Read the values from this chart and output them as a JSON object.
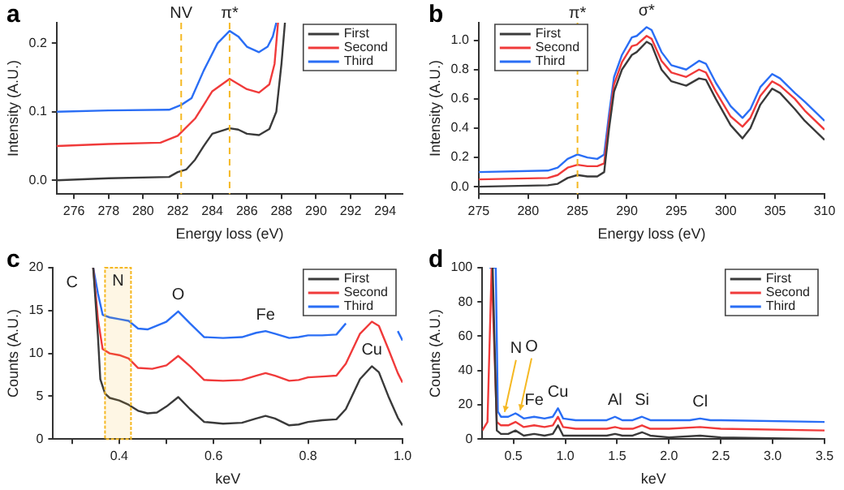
{
  "chart_data": [
    {
      "type": "line",
      "title": "a",
      "xlabel": "Energy loss (eV)",
      "ylabel": "Intensity (A.U.)",
      "xlim": [
        275,
        295
      ],
      "xticks": [
        276,
        278,
        280,
        282,
        284,
        286,
        288,
        290,
        292,
        294
      ],
      "ylim": [
        -0.02,
        0.23
      ],
      "yticks": [
        {
          "value": 0,
          "label": "0.0"
        },
        {
          "value": 0.1,
          "label": "0.1"
        },
        {
          "value": 0.2,
          "label": "0.2"
        }
      ],
      "legend": "top right",
      "ref_lines": [
        {
          "axis": "x",
          "value": 282.2,
          "label": "NV",
          "color": "#f5b822",
          "line_style": "dashed"
        },
        {
          "axis": "x",
          "value": 285,
          "label": "π*",
          "color": "#f5b822",
          "line_style": "dashed"
        }
      ],
      "series": [
        {
          "name": "First",
          "color": "#3a3a3a",
          "x": [
            275,
            278,
            281.5,
            282,
            282.5,
            283,
            283.5,
            284,
            285,
            285.5,
            286,
            286.7,
            287.3,
            287.7,
            288,
            288.2
          ],
          "values": [
            0,
            0.003,
            0.005,
            0.012,
            0.016,
            0.03,
            0.05,
            0.068,
            0.076,
            0.074,
            0.068,
            0.066,
            0.075,
            0.1,
            0.17,
            0.23
          ]
        },
        {
          "name": "Second",
          "color": "#f03a3a",
          "x": [
            275,
            278,
            281,
            282,
            283,
            284,
            285,
            286,
            286.7,
            287.3,
            287.6,
            287.8
          ],
          "values": [
            0.05,
            0.053,
            0.055,
            0.065,
            0.09,
            0.13,
            0.148,
            0.133,
            0.128,
            0.14,
            0.17,
            0.23
          ]
        },
        {
          "name": "Third",
          "color": "#2a6ef5",
          "x": [
            275,
            278,
            281.5,
            282.2,
            282.8,
            283.5,
            284.3,
            285,
            285.5,
            286,
            286.7,
            287.2,
            287.5,
            287.7
          ],
          "values": [
            0.1,
            0.102,
            0.103,
            0.11,
            0.12,
            0.16,
            0.2,
            0.218,
            0.21,
            0.195,
            0.187,
            0.195,
            0.21,
            0.23
          ]
        }
      ]
    },
    {
      "type": "line",
      "title": "b",
      "xlabel": "Energy loss (eV)",
      "ylabel": "Intensity (A.U.)",
      "xlim": [
        275,
        310
      ],
      "xticks": [
        275,
        280,
        285,
        290,
        295,
        300,
        305,
        310
      ],
      "ylim": [
        -0.05,
        1.12
      ],
      "yticks": [
        {
          "value": 0,
          "label": "0.0"
        },
        {
          "value": 0.2,
          "label": "0.2"
        },
        {
          "value": 0.4,
          "label": "0.4"
        },
        {
          "value": 0.6,
          "label": "0.6"
        },
        {
          "value": 0.8,
          "label": "0.8"
        },
        {
          "value": 1,
          "label": "1.0"
        }
      ],
      "legend": "top left",
      "ref_lines": [
        {
          "axis": "x",
          "value": 285,
          "label": "π*",
          "color": "#f5b822",
          "line_style": "dashed"
        }
      ],
      "annotations": [
        {
          "text": "σ*",
          "x": 292,
          "y": 1.09
        }
      ],
      "series": [
        {
          "name": "First",
          "color": "#3a3a3a",
          "x": [
            275,
            282,
            283,
            284,
            285,
            286,
            287,
            287.7,
            288.2,
            288.7,
            289.5,
            290.5,
            291,
            292,
            292.5,
            293.5,
            294.5,
            296,
            297.3,
            298,
            299,
            300.5,
            301.7,
            302.5,
            303.5,
            304.7,
            305.5,
            307,
            308,
            310
          ],
          "values": [
            0,
            0.01,
            0.02,
            0.06,
            0.08,
            0.07,
            0.07,
            0.1,
            0.4,
            0.65,
            0.8,
            0.9,
            0.92,
            0.99,
            0.97,
            0.8,
            0.72,
            0.69,
            0.74,
            0.73,
            0.6,
            0.42,
            0.33,
            0.4,
            0.56,
            0.67,
            0.64,
            0.53,
            0.45,
            0.32
          ]
        },
        {
          "name": "Second",
          "color": "#f03a3a",
          "x": [
            275,
            282,
            283,
            284,
            285,
            286,
            287,
            287.7,
            288.2,
            288.7,
            289.5,
            290.5,
            291,
            292,
            292.5,
            293.5,
            294.5,
            296,
            297.3,
            298,
            299,
            300.5,
            301.7,
            302.5,
            303.5,
            304.7,
            305.5,
            307,
            308,
            310
          ],
          "values": [
            0.05,
            0.06,
            0.08,
            0.13,
            0.15,
            0.14,
            0.14,
            0.16,
            0.45,
            0.7,
            0.85,
            0.96,
            0.97,
            1.03,
            1.01,
            0.86,
            0.78,
            0.75,
            0.8,
            0.78,
            0.65,
            0.48,
            0.41,
            0.47,
            0.62,
            0.72,
            0.69,
            0.6,
            0.52,
            0.39
          ]
        },
        {
          "name": "Third",
          "color": "#2a6ef5",
          "x": [
            275,
            282,
            283,
            284,
            285,
            286,
            287,
            287.7,
            288.2,
            288.7,
            289.5,
            290.5,
            291,
            292,
            292.5,
            293.5,
            294.5,
            296,
            297.3,
            298,
            299,
            300.5,
            301.7,
            302.5,
            303.5,
            304.7,
            305.5,
            307,
            308,
            310
          ],
          "values": [
            0.1,
            0.11,
            0.13,
            0.19,
            0.22,
            0.2,
            0.19,
            0.22,
            0.5,
            0.75,
            0.9,
            1.02,
            1.03,
            1.09,
            1.07,
            0.92,
            0.83,
            0.8,
            0.86,
            0.84,
            0.71,
            0.55,
            0.47,
            0.53,
            0.68,
            0.77,
            0.74,
            0.64,
            0.58,
            0.45
          ]
        }
      ]
    },
    {
      "type": "line",
      "title": "c",
      "xlabel": "keV",
      "ylabel": "Counts (A.U.)",
      "xlim": [
        0.26,
        1.0
      ],
      "xticks": [
        {
          "value": 0.3,
          "label": null
        },
        {
          "value": 0.4,
          "label": "0.4"
        },
        {
          "value": 0.5,
          "label": null
        },
        {
          "value": 0.6,
          "label": "0.6"
        },
        {
          "value": 0.7,
          "label": null
        },
        {
          "value": 0.8,
          "label": "0.8"
        },
        {
          "value": 0.9,
          "label": null
        },
        {
          "value": 1,
          "label": "1.0"
        }
      ],
      "ylim": [
        0,
        20
      ],
      "yticks": [
        0,
        5,
        10,
        15,
        20
      ],
      "legend": "top right",
      "bands": [
        {
          "axis": "x",
          "from": 0.37,
          "to": 0.425,
          "label": "N",
          "color": "#f5b822"
        }
      ],
      "annotations": [
        "C",
        {
          "text": "O",
          "x": 0.525,
          "y": 14.9
        },
        {
          "text": "Fe",
          "x": 0.71,
          "y": 12.6
        },
        {
          "text": "Cu",
          "x": 0.935,
          "y": 8.5
        }
      ],
      "series": [
        {
          "name": "First",
          "color": "#3a3a3a",
          "x": [
            0.345,
            0.355,
            0.36,
            0.37,
            0.38,
            0.4,
            0.42,
            0.44,
            0.46,
            0.48,
            0.5,
            0.525,
            0.55,
            0.58,
            0.62,
            0.66,
            0.69,
            0.71,
            0.73,
            0.76,
            0.78,
            0.8,
            0.83,
            0.86,
            0.88,
            0.91,
            0.935,
            0.95,
            0.97,
            0.99,
            1.0
          ],
          "values": [
            20,
            12,
            7,
            5.3,
            4.8,
            4.5,
            4,
            3.3,
            3,
            3.1,
            3.8,
            4.9,
            3.5,
            2,
            1.8,
            1.9,
            2.4,
            2.7,
            2.4,
            1.6,
            1.7,
            2,
            2.2,
            2.3,
            3.5,
            7,
            8.5,
            7.8,
            5,
            2.5,
            1.6
          ]
        },
        {
          "name": "Second",
          "color": "#f03a3a",
          "x": [
            0.345,
            0.355,
            0.365,
            0.38,
            0.4,
            0.42,
            0.44,
            0.47,
            0.5,
            0.525,
            0.55,
            0.58,
            0.62,
            0.66,
            0.69,
            0.71,
            0.73,
            0.76,
            0.78,
            0.8,
            0.83,
            0.86,
            0.88,
            0.91,
            0.935,
            0.95,
            0.97,
            0.99,
            1.0
          ],
          "values": [
            20,
            14,
            10.5,
            10,
            9.8,
            9.4,
            8.3,
            8.2,
            8.6,
            9.7,
            8.5,
            6.9,
            6.8,
            6.9,
            7.4,
            7.7,
            7.4,
            6.8,
            6.9,
            7.2,
            7.3,
            7.4,
            8.8,
            12.3,
            13.7,
            13.2,
            10.5,
            7.7,
            6.6
          ]
        },
        {
          "name": "Third",
          "color": "#2a6ef5",
          "x": [
            0.345,
            0.355,
            0.365,
            0.38,
            0.4,
            0.42,
            0.44,
            0.46,
            0.5,
            0.525,
            0.55,
            0.58,
            0.62,
            0.66,
            0.69,
            0.71,
            0.73,
            0.76,
            0.78,
            0.8,
            0.83,
            0.86,
            0.88,
            0.92,
            0.99,
            1.0
          ],
          "values": [
            20,
            17,
            14.5,
            14.2,
            14,
            13.8,
            12.9,
            12.8,
            13.7,
            14.9,
            13.5,
            11.9,
            11.8,
            11.9,
            12.4,
            12.6,
            12.3,
            11.8,
            11.9,
            12.1,
            12.1,
            12.2,
            13.5,
            null,
            12.6,
            11.5
          ]
        }
      ]
    },
    {
      "type": "line",
      "title": "d",
      "xlabel": "keV",
      "ylabel": "Counts (A.U.)",
      "xlim": [
        0.2,
        3.5
      ],
      "xticks": [
        {
          "value": 0.5,
          "label": "0.5"
        },
        {
          "value": 1,
          "label": "1.0"
        },
        {
          "value": 1.5,
          "label": "1.5"
        },
        {
          "value": 2,
          "label": "2.0"
        },
        {
          "value": 2.5,
          "label": "2.5"
        },
        {
          "value": 3,
          "label": "3.0"
        },
        {
          "value": 3.5,
          "label": "3.5"
        }
      ],
      "ylim": [
        0,
        100
      ],
      "yticks": [
        0,
        20,
        40,
        60,
        80,
        100
      ],
      "legend": "top right",
      "annotations": [
        {
          "text": "N",
          "x": 0.4,
          "y": 13
        },
        {
          "text": "O",
          "x": 0.55,
          "y": 14
        },
        {
          "text": "Fe",
          "x": 0.7,
          "y": 13
        },
        {
          "text": "Cu",
          "x": 0.93,
          "y": 18
        },
        {
          "text": "Al",
          "x": 1.48,
          "y": 13
        },
        {
          "text": "Si",
          "x": 1.74,
          "y": 13
        },
        {
          "text": "Cl",
          "x": 2.3,
          "y": 12
        }
      ],
      "series": [
        {
          "name": "First",
          "color": "#3a3a3a",
          "x": [
            0.3,
            0.34,
            0.38,
            0.45,
            0.52,
            0.6,
            0.7,
            0.8,
            0.88,
            0.93,
            0.98,
            1.1,
            1.4,
            1.48,
            1.55,
            1.65,
            1.74,
            1.82,
            2,
            2.3,
            2.5,
            3.5
          ],
          "values": [
            100,
            5,
            3,
            3,
            5,
            2,
            3,
            2,
            3,
            8,
            2,
            2,
            2,
            3,
            2,
            2,
            4,
            2,
            1,
            2,
            1,
            0
          ]
        },
        {
          "name": "Second",
          "color": "#f03a3a",
          "x": [
            0.2,
            0.25,
            0.29,
            0.34,
            0.38,
            0.45,
            0.52,
            0.6,
            0.7,
            0.8,
            0.88,
            0.93,
            0.98,
            1.1,
            1.4,
            1.48,
            1.55,
            1.65,
            1.74,
            1.82,
            2,
            2.3,
            2.5,
            3.5
          ],
          "values": [
            5,
            10,
            100,
            10,
            8,
            8,
            10,
            7,
            8,
            7,
            8,
            13,
            7,
            6,
            6,
            7,
            6,
            6,
            8,
            6,
            6,
            7,
            6,
            5
          ]
        },
        {
          "name": "Third",
          "color": "#2a6ef5",
          "x": [
            0.27,
            0.33,
            0.35,
            0.38,
            0.4,
            0.45,
            0.52,
            0.55,
            0.6,
            0.7,
            0.8,
            0.88,
            0.93,
            0.98,
            1.1,
            1.4,
            1.48,
            1.55,
            1.65,
            1.74,
            1.82,
            2,
            2.2,
            2.3,
            2.4,
            2.5,
            3.5
          ],
          "values": [
            100,
            100,
            16,
            13,
            13,
            13,
            15,
            14,
            12,
            13,
            12,
            13,
            18,
            12,
            11,
            11,
            13,
            11,
            11,
            13,
            11,
            11,
            11,
            12,
            11,
            11,
            10
          ]
        }
      ]
    }
  ]
}
